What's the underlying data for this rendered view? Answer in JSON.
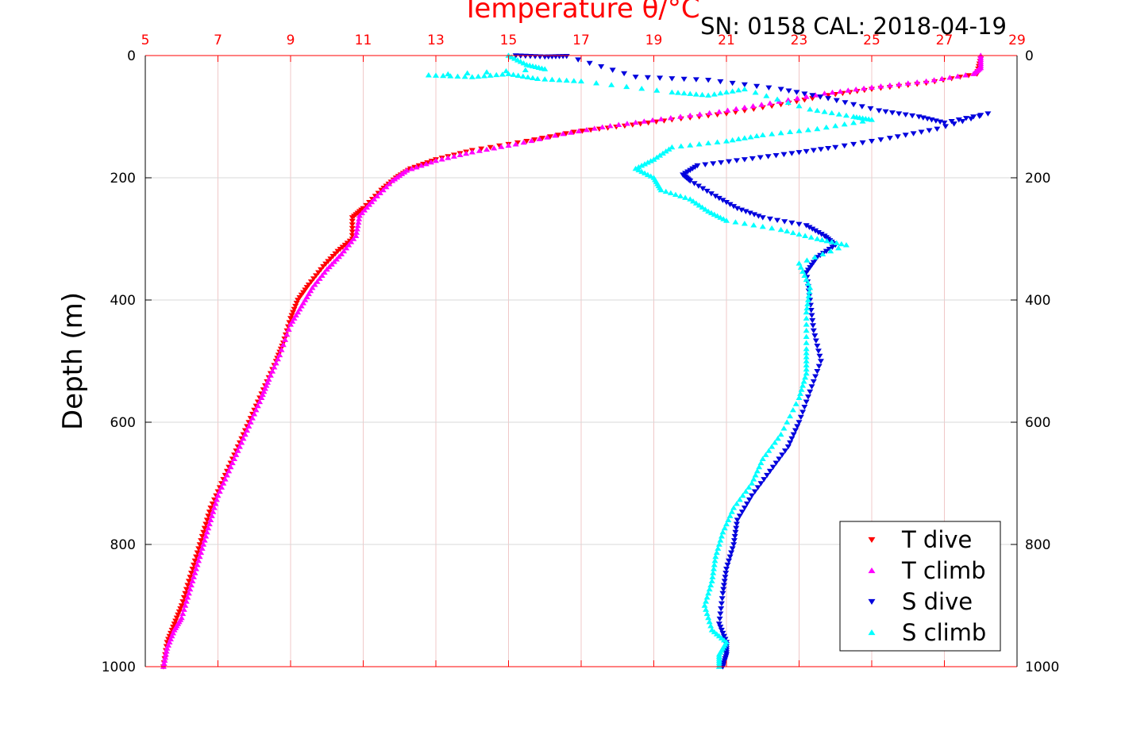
{
  "chart_data": {
    "type": "scatter",
    "title": "Temperature θ/°C",
    "annotation": "SN: 0158  CAL: 2018-04-19",
    "xlabel_top": "Temperature θ/°C",
    "ylabel": "Depth (m)",
    "x_top_range": [
      5,
      29
    ],
    "x_top_ticks": [
      "5",
      "7",
      "9",
      "11",
      "13",
      "15",
      "17",
      "19",
      "21",
      "23",
      "25",
      "27",
      "29"
    ],
    "y_range": [
      0,
      1000
    ],
    "y_reversed": true,
    "y_ticks": [
      "0",
      "200",
      "400",
      "600",
      "800",
      "1000"
    ],
    "grid": true,
    "legend_position": "bottom-right",
    "series": [
      {
        "name": "T dive",
        "color": "#ff0000",
        "marker": "triangle-down",
        "axis": "temperature",
        "points": [
          [
            28.0,
            5
          ],
          [
            27.9,
            30
          ],
          [
            26.5,
            45
          ],
          [
            25.0,
            55
          ],
          [
            23.8,
            65
          ],
          [
            22.5,
            80
          ],
          [
            21.0,
            95
          ],
          [
            19.5,
            105
          ],
          [
            18.2,
            115
          ],
          [
            16.8,
            125
          ],
          [
            15.5,
            140
          ],
          [
            14.0,
            155
          ],
          [
            13.0,
            170
          ],
          [
            12.3,
            185
          ],
          [
            11.9,
            200
          ],
          [
            11.5,
            220
          ],
          [
            11.0,
            250
          ],
          [
            10.7,
            265
          ],
          [
            10.7,
            300
          ],
          [
            10.3,
            320
          ],
          [
            9.9,
            345
          ],
          [
            9.5,
            375
          ],
          [
            9.2,
            400
          ],
          [
            9.0,
            430
          ],
          [
            8.8,
            470
          ],
          [
            8.6,
            500
          ],
          [
            8.3,
            540
          ],
          [
            8.0,
            580
          ],
          [
            7.7,
            620
          ],
          [
            7.4,
            660
          ],
          [
            7.1,
            700
          ],
          [
            6.8,
            740
          ],
          [
            6.6,
            780
          ],
          [
            6.4,
            820
          ],
          [
            6.2,
            860
          ],
          [
            6.0,
            900
          ],
          [
            5.8,
            930
          ],
          [
            5.6,
            960
          ],
          [
            5.5,
            1000
          ]
        ]
      },
      {
        "name": "T climb",
        "color": "#ff00ff",
        "marker": "triangle-up",
        "axis": "temperature",
        "points": [
          [
            28.0,
            0
          ],
          [
            28.0,
            20
          ],
          [
            27.8,
            30
          ],
          [
            26.5,
            42
          ],
          [
            25.0,
            52
          ],
          [
            23.7,
            62
          ],
          [
            22.2,
            78
          ],
          [
            20.8,
            92
          ],
          [
            19.2,
            104
          ],
          [
            17.8,
            115
          ],
          [
            16.5,
            128
          ],
          [
            15.2,
            145
          ],
          [
            14.0,
            158
          ],
          [
            13.0,
            172
          ],
          [
            12.2,
            188
          ],
          [
            11.8,
            205
          ],
          [
            11.3,
            235
          ],
          [
            10.9,
            262
          ],
          [
            10.8,
            295
          ],
          [
            10.4,
            325
          ],
          [
            10.0,
            350
          ],
          [
            9.6,
            380
          ],
          [
            9.3,
            410
          ],
          [
            9.0,
            440
          ],
          [
            8.7,
            490
          ],
          [
            8.4,
            530
          ],
          [
            8.2,
            560
          ],
          [
            7.9,
            600
          ],
          [
            7.6,
            640
          ],
          [
            7.3,
            680
          ],
          [
            7.0,
            720
          ],
          [
            6.8,
            760
          ],
          [
            6.6,
            800
          ],
          [
            6.4,
            840
          ],
          [
            6.2,
            880
          ],
          [
            6.0,
            920
          ],
          [
            5.8,
            940
          ],
          [
            5.6,
            970
          ],
          [
            5.5,
            1000
          ]
        ]
      },
      {
        "name": "S dive",
        "color": "#0000dd",
        "marker": "triangle-down",
        "axis": "temperature",
        "points": [
          [
            15.2,
            0
          ],
          [
            16.0,
            2
          ],
          [
            16.6,
            1
          ],
          [
            18.5,
            35
          ],
          [
            20.5,
            40
          ],
          [
            22.5,
            55
          ],
          [
            23.8,
            70
          ],
          [
            25.2,
            90
          ],
          [
            26.3,
            100
          ],
          [
            27.0,
            110
          ],
          [
            28.2,
            95
          ],
          [
            26.8,
            120
          ],
          [
            25.5,
            135
          ],
          [
            24.0,
            150
          ],
          [
            22.8,
            160
          ],
          [
            21.5,
            170
          ],
          [
            20.2,
            180
          ],
          [
            19.8,
            195
          ],
          [
            20.0,
            205
          ],
          [
            20.7,
            230
          ],
          [
            21.3,
            250
          ],
          [
            22.0,
            265
          ],
          [
            23.2,
            278
          ],
          [
            23.7,
            295
          ],
          [
            24.0,
            310
          ],
          [
            23.5,
            330
          ],
          [
            23.2,
            355
          ],
          [
            23.3,
            400
          ],
          [
            23.4,
            450
          ],
          [
            23.6,
            500
          ],
          [
            23.3,
            550
          ],
          [
            23.0,
            600
          ],
          [
            22.7,
            640
          ],
          [
            22.2,
            680
          ],
          [
            21.7,
            720
          ],
          [
            21.3,
            760
          ],
          [
            21.2,
            800
          ],
          [
            21.0,
            840
          ],
          [
            20.9,
            880
          ],
          [
            20.8,
            930
          ],
          [
            21.0,
            960
          ],
          [
            21.0,
            980
          ],
          [
            20.9,
            1000
          ]
        ]
      },
      {
        "name": "S climb",
        "color": "#00ffff",
        "marker": "triangle-up",
        "axis": "temperature",
        "points": [
          [
            15.0,
            0
          ],
          [
            15.5,
            15
          ],
          [
            16.0,
            22
          ],
          [
            12.8,
            32
          ],
          [
            14.0,
            35
          ],
          [
            15.0,
            30
          ],
          [
            15.8,
            38
          ],
          [
            17.0,
            42
          ],
          [
            19.5,
            60
          ],
          [
            20.5,
            65
          ],
          [
            21.5,
            55
          ],
          [
            23.3,
            88
          ],
          [
            24.5,
            100
          ],
          [
            25.0,
            105
          ],
          [
            23.5,
            120
          ],
          [
            22.0,
            130
          ],
          [
            21.0,
            140
          ],
          [
            19.5,
            150
          ],
          [
            19.0,
            170
          ],
          [
            18.5,
            185
          ],
          [
            19.0,
            200
          ],
          [
            19.2,
            220
          ],
          [
            20.0,
            235
          ],
          [
            20.5,
            255
          ],
          [
            21.0,
            270
          ],
          [
            22.5,
            285
          ],
          [
            23.5,
            300
          ],
          [
            24.3,
            310
          ],
          [
            23.0,
            340
          ],
          [
            23.3,
            380
          ],
          [
            23.2,
            420
          ],
          [
            23.2,
            480
          ],
          [
            23.2,
            520
          ],
          [
            23.0,
            560
          ],
          [
            22.5,
            620
          ],
          [
            22.0,
            660
          ],
          [
            21.7,
            700
          ],
          [
            21.2,
            740
          ],
          [
            20.9,
            780
          ],
          [
            20.7,
            820
          ],
          [
            20.6,
            860
          ],
          [
            20.4,
            900
          ],
          [
            20.6,
            940
          ],
          [
            21.0,
            960
          ],
          [
            20.8,
            980
          ],
          [
            20.8,
            1000
          ]
        ]
      }
    ]
  }
}
